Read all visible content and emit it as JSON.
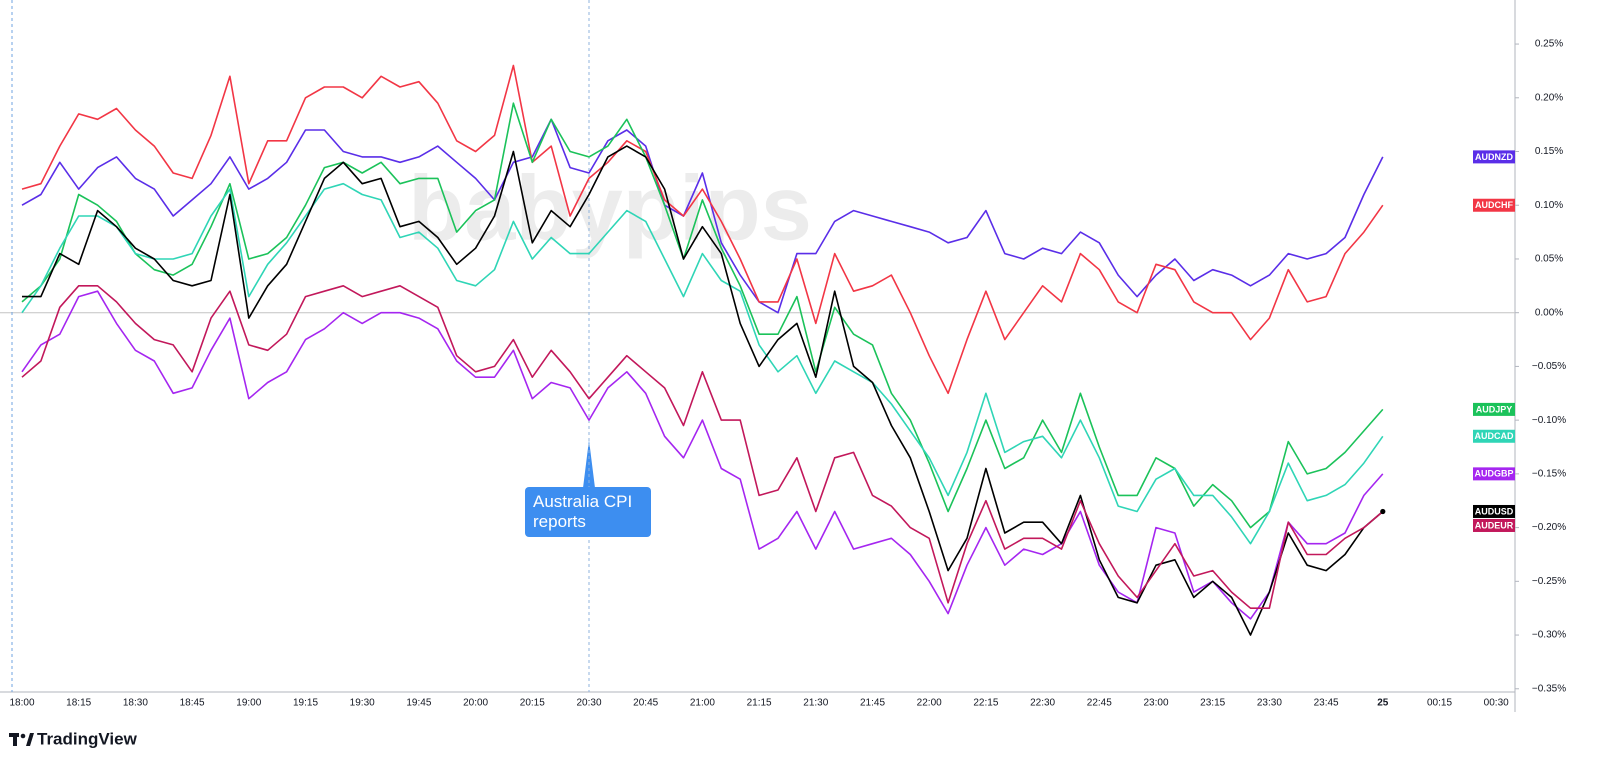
{
  "chart_data": {
    "type": "line",
    "watermark": "babypips",
    "attribution": "TradingView",
    "annotation": {
      "text": "Australia CPI reports",
      "category": "20:30"
    },
    "categories": [
      "18:00",
      null,
      null,
      "18:15",
      null,
      null,
      "18:30",
      null,
      null,
      "18:45",
      null,
      null,
      "19:00",
      null,
      null,
      "19:15",
      null,
      null,
      "19:30",
      null,
      null,
      "19:45",
      null,
      null,
      "20:00",
      null,
      null,
      "20:15",
      null,
      null,
      "20:30",
      null,
      null,
      "20:45",
      null,
      null,
      "21:00",
      null,
      null,
      "21:15",
      null,
      null,
      "21:30",
      null,
      null,
      "21:45",
      null,
      null,
      "22:00",
      null,
      null,
      "22:15",
      null,
      null,
      "22:30",
      null,
      null,
      "22:45",
      null,
      null,
      "23:00",
      null,
      null,
      "23:15",
      null,
      null,
      "23:30",
      null,
      null,
      "23:45",
      null,
      null,
      "25",
      null,
      null,
      "00:15",
      null,
      null,
      "00:30"
    ],
    "ylim": [
      -0.353,
      0.291
    ],
    "yticks": [
      {
        "value": 0.25,
        "label": "0.25%"
      },
      {
        "value": 0.2,
        "label": "0.20%"
      },
      {
        "value": 0.15,
        "label": "0.15%"
      },
      {
        "value": 0.1,
        "label": "0.10%"
      },
      {
        "value": 0.05,
        "label": "0.05%"
      },
      {
        "value": 0,
        "label": "0.00%"
      },
      {
        "value": -0.05,
        "label": "−0.05%"
      },
      {
        "value": -0.1,
        "label": "−0.10%"
      },
      {
        "value": -0.15,
        "label": "−0.15%"
      },
      {
        "value": -0.2,
        "label": "−0.20%"
      },
      {
        "value": -0.25,
        "label": "−0.25%"
      },
      {
        "value": -0.3,
        "label": "−0.30%"
      },
      {
        "value": -0.35,
        "label": "−0.35%"
      }
    ],
    "grid": false,
    "series": [
      {
        "name": "AUDNZD",
        "color": "#5a2ee8",
        "values": [
          0.1,
          0.11,
          0.14,
          0.115,
          0.135,
          0.145,
          0.125,
          0.115,
          0.09,
          0.105,
          0.12,
          0.145,
          0.115,
          0.125,
          0.14,
          0.17,
          0.17,
          0.15,
          0.145,
          0.145,
          0.14,
          0.145,
          0.155,
          0.14,
          0.125,
          0.105,
          0.14,
          0.145,
          0.18,
          0.135,
          0.13,
          0.16,
          0.17,
          0.155,
          0.1,
          0.09,
          0.13,
          0.065,
          0.035,
          0.01,
          0.0,
          0.055,
          0.055,
          0.085,
          0.095,
          0.09,
          0.085,
          0.08,
          0.075,
          0.065,
          0.07,
          0.095,
          0.055,
          0.05,
          0.06,
          0.055,
          0.075,
          0.065,
          0.035,
          0.015,
          0.035,
          0.05,
          0.03,
          0.04,
          0.035,
          0.025,
          0.035,
          0.055,
          0.05,
          0.055,
          0.07,
          0.11,
          0.145,
          null,
          null,
          null,
          null,
          null,
          null
        ]
      },
      {
        "name": "AUDCHF",
        "color": "#f23645",
        "values": [
          0.115,
          0.12,
          0.155,
          0.185,
          0.18,
          0.19,
          0.17,
          0.155,
          0.13,
          0.125,
          0.165,
          0.22,
          0.12,
          0.16,
          0.16,
          0.2,
          0.21,
          0.21,
          0.2,
          0.22,
          0.21,
          0.215,
          0.195,
          0.16,
          0.15,
          0.165,
          0.23,
          0.14,
          0.155,
          0.09,
          0.125,
          0.14,
          0.16,
          0.15,
          0.105,
          0.09,
          0.115,
          0.085,
          0.05,
          0.01,
          0.01,
          0.05,
          -0.01,
          0.055,
          0.02,
          0.025,
          0.035,
          0.0,
          -0.04,
          -0.075,
          -0.025,
          0.02,
          -0.025,
          0.0,
          0.025,
          0.01,
          0.055,
          0.04,
          0.01,
          0.0,
          0.045,
          0.04,
          0.01,
          0.0,
          0.0,
          -0.025,
          -0.005,
          0.04,
          0.01,
          0.015,
          0.055,
          0.075,
          0.1,
          null,
          null,
          null,
          null,
          null,
          null
        ]
      },
      {
        "name": "AUDJPY",
        "color": "#1bc25a",
        "values": [
          0.01,
          0.025,
          0.05,
          0.11,
          0.1,
          0.085,
          0.055,
          0.04,
          0.035,
          0.045,
          0.08,
          0.12,
          0.05,
          0.055,
          0.07,
          0.1,
          0.135,
          0.14,
          0.13,
          0.14,
          0.12,
          0.125,
          0.125,
          0.075,
          0.095,
          0.105,
          0.195,
          0.14,
          0.18,
          0.15,
          0.145,
          0.155,
          0.18,
          0.145,
          0.1,
          0.05,
          0.105,
          0.06,
          0.025,
          -0.02,
          -0.02,
          0.015,
          -0.055,
          0.005,
          -0.02,
          -0.03,
          -0.075,
          -0.1,
          -0.14,
          -0.185,
          -0.145,
          -0.1,
          -0.145,
          -0.135,
          -0.1,
          -0.13,
          -0.075,
          -0.125,
          -0.17,
          -0.17,
          -0.135,
          -0.145,
          -0.18,
          -0.16,
          -0.175,
          -0.2,
          -0.185,
          -0.12,
          -0.15,
          -0.145,
          -0.13,
          -0.11,
          -0.09,
          null,
          null,
          null,
          null,
          null,
          null
        ]
      },
      {
        "name": "AUDCAD",
        "color": "#2fd5b6",
        "values": [
          0.0,
          0.025,
          0.06,
          0.09,
          0.09,
          0.08,
          0.055,
          0.05,
          0.05,
          0.055,
          0.09,
          0.115,
          0.015,
          0.045,
          0.065,
          0.09,
          0.115,
          0.12,
          0.11,
          0.105,
          0.07,
          0.075,
          0.06,
          0.03,
          0.025,
          0.04,
          0.085,
          0.05,
          0.07,
          0.055,
          0.055,
          0.075,
          0.095,
          0.085,
          0.05,
          0.015,
          0.055,
          0.03,
          0.02,
          -0.03,
          -0.055,
          -0.04,
          -0.075,
          -0.045,
          -0.055,
          -0.065,
          -0.085,
          -0.11,
          -0.135,
          -0.17,
          -0.13,
          -0.075,
          -0.13,
          -0.12,
          -0.115,
          -0.135,
          -0.1,
          -0.135,
          -0.18,
          -0.185,
          -0.155,
          -0.145,
          -0.17,
          -0.17,
          -0.19,
          -0.215,
          -0.185,
          -0.14,
          -0.175,
          -0.17,
          -0.16,
          -0.14,
          -0.115,
          null,
          null,
          null,
          null,
          null,
          null
        ]
      },
      {
        "name": "AUDGBP",
        "color": "#a526f0",
        "values": [
          -0.055,
          -0.03,
          -0.02,
          0.015,
          0.02,
          -0.01,
          -0.035,
          -0.045,
          -0.075,
          -0.07,
          -0.035,
          -0.005,
          -0.08,
          -0.065,
          -0.055,
          -0.025,
          -0.015,
          0.0,
          -0.01,
          0.0,
          0.0,
          -0.005,
          -0.015,
          -0.045,
          -0.06,
          -0.06,
          -0.035,
          -0.08,
          -0.065,
          -0.07,
          -0.1,
          -0.07,
          -0.055,
          -0.075,
          -0.115,
          -0.135,
          -0.1,
          -0.145,
          -0.155,
          -0.22,
          -0.21,
          -0.185,
          -0.22,
          -0.185,
          -0.22,
          -0.215,
          -0.21,
          -0.225,
          -0.25,
          -0.28,
          -0.235,
          -0.2,
          -0.235,
          -0.22,
          -0.225,
          -0.215,
          -0.185,
          -0.235,
          -0.26,
          -0.27,
          -0.2,
          -0.205,
          -0.26,
          -0.25,
          -0.27,
          -0.285,
          -0.26,
          -0.195,
          -0.215,
          -0.215,
          -0.205,
          -0.17,
          -0.15,
          null,
          null,
          null,
          null,
          null,
          null
        ]
      },
      {
        "name": "AUDUSD",
        "color": "#000000",
        "values": [
          0.015,
          0.015,
          0.055,
          0.045,
          0.095,
          0.08,
          0.06,
          0.05,
          0.03,
          0.025,
          0.03,
          0.11,
          -0.005,
          0.025,
          0.045,
          0.085,
          0.125,
          0.14,
          0.12,
          0.125,
          0.08,
          0.085,
          0.07,
          0.045,
          0.06,
          0.09,
          0.15,
          0.065,
          0.095,
          0.08,
          0.11,
          0.145,
          0.155,
          0.145,
          0.115,
          0.05,
          0.08,
          0.055,
          -0.01,
          -0.05,
          -0.025,
          -0.01,
          -0.06,
          0.02,
          -0.05,
          -0.065,
          -0.105,
          -0.135,
          -0.185,
          -0.24,
          -0.21,
          -0.145,
          -0.205,
          -0.195,
          -0.195,
          -0.215,
          -0.17,
          -0.23,
          -0.265,
          -0.27,
          -0.235,
          -0.23,
          -0.265,
          -0.25,
          -0.265,
          -0.3,
          -0.26,
          -0.205,
          -0.235,
          -0.24,
          -0.225,
          -0.2,
          -0.185,
          null,
          null,
          null,
          null,
          null,
          null
        ]
      },
      {
        "name": "AUDEUR",
        "color": "#c2185b",
        "values": [
          -0.06,
          -0.045,
          0.005,
          0.025,
          0.025,
          0.01,
          -0.01,
          -0.025,
          -0.03,
          -0.055,
          -0.005,
          0.02,
          -0.03,
          -0.035,
          -0.02,
          0.015,
          0.02,
          0.025,
          0.015,
          0.02,
          0.025,
          0.015,
          0.005,
          -0.04,
          -0.055,
          -0.05,
          -0.025,
          -0.06,
          -0.035,
          -0.055,
          -0.08,
          -0.06,
          -0.04,
          -0.055,
          -0.07,
          -0.105,
          -0.055,
          -0.1,
          -0.1,
          -0.17,
          -0.165,
          -0.135,
          -0.185,
          -0.135,
          -0.13,
          -0.17,
          -0.18,
          -0.2,
          -0.21,
          -0.27,
          -0.215,
          -0.175,
          -0.22,
          -0.21,
          -0.21,
          -0.22,
          -0.175,
          -0.215,
          -0.245,
          -0.265,
          -0.24,
          -0.215,
          -0.245,
          -0.24,
          -0.26,
          -0.275,
          -0.275,
          -0.195,
          -0.225,
          -0.225,
          -0.21,
          -0.2,
          -0.185,
          null,
          null,
          null,
          null,
          null,
          null
        ]
      }
    ]
  }
}
